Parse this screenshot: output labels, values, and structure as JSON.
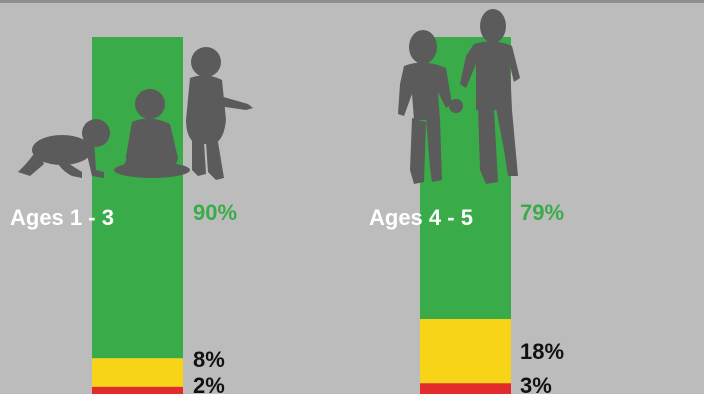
{
  "chart_data": {
    "type": "bar",
    "stacked": true,
    "categories": [
      "Ages 1 - 3",
      "Ages 4 - 5"
    ],
    "series": [
      {
        "values": [
          90,
          79
        ],
        "color": "#3aab49",
        "label_color": "#3aab49"
      },
      {
        "values": [
          8,
          18
        ],
        "color": "#f7d417",
        "label_color": "#111111"
      },
      {
        "values": [
          2,
          3
        ],
        "color": "#e32b2b",
        "label_color": "#111111"
      }
    ],
    "value_labels": [
      [
        "90%",
        "8%",
        "2%"
      ],
      [
        "79%",
        "18%",
        "3%"
      ]
    ],
    "ylim": [
      0,
      100
    ],
    "grid": false,
    "legend": "none",
    "icons": [
      "crawling-baby-icon",
      "sitting-toddler-icon",
      "standing-toddler-icon",
      "walking-child-icon",
      "standing-child-icon"
    ],
    "colors": {
      "background": "#bcbcbc",
      "silhouette": "#5b5b5b",
      "category_label": "#ffffff"
    }
  }
}
